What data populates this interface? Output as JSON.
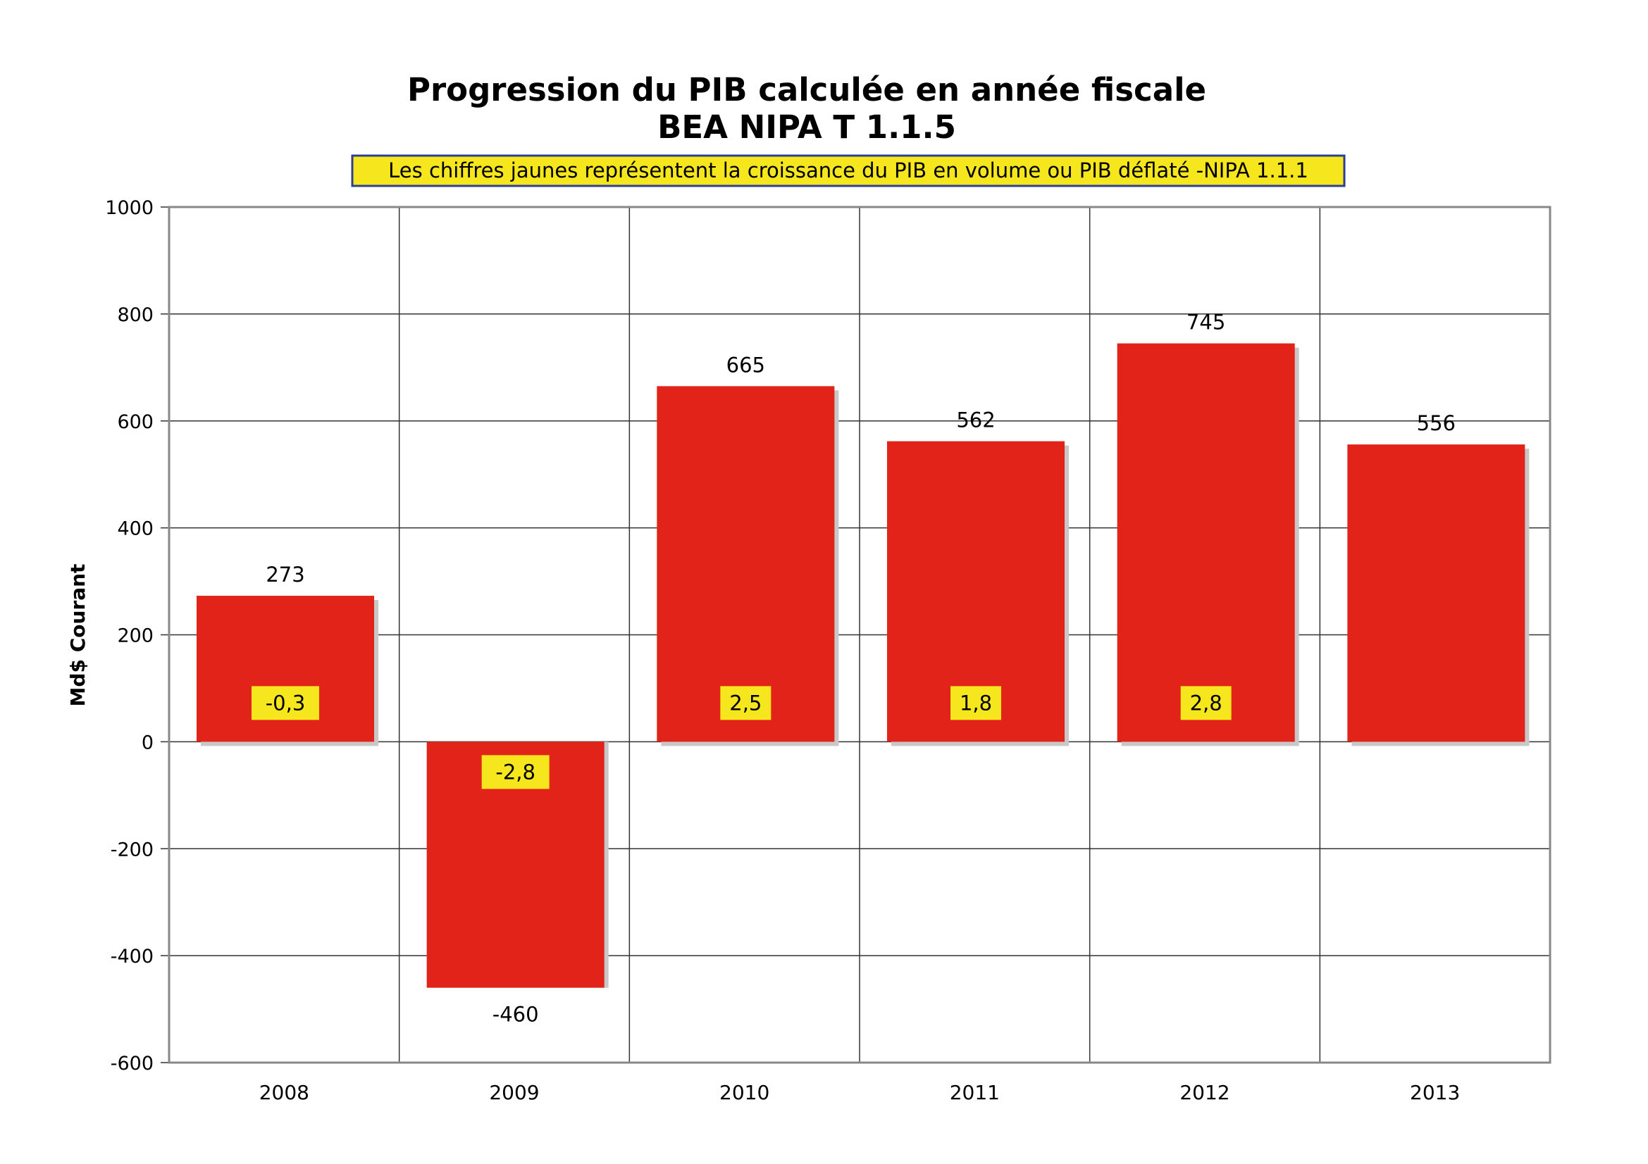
{
  "chart_data": {
    "type": "bar",
    "title": "Progression du PIB calculée en année fiscale",
    "subtitle": "BEA NIPA T 1.1.5",
    "note": "Les chiffres jaunes représentent la croissance du PIB en volume ou PIB déflaté -NIPA 1.1.1",
    "xlabel": "",
    "ylabel": "Md$ Courant",
    "ylim": [
      -600,
      1000
    ],
    "yticks": [
      1000,
      800,
      600,
      400,
      200,
      0,
      -200,
      -400,
      -600
    ],
    "grid": true,
    "categories": [
      "2008",
      "2009",
      "2010",
      "2011",
      "2012",
      "2013"
    ],
    "values": [
      273,
      -460,
      665,
      562,
      745,
      556
    ],
    "value_labels": [
      "273",
      "-460",
      "665",
      "562",
      "745",
      "556"
    ],
    "growth_labels": [
      "-0,3",
      "-2,8",
      "2,5",
      "1,8",
      "2,8",
      null
    ],
    "colors": {
      "bar": "#e2231a",
      "shadow": "#c8c8c8",
      "label_bg": "#f5e61e",
      "note_border": "#2c3f95",
      "axis": "#888888"
    }
  }
}
